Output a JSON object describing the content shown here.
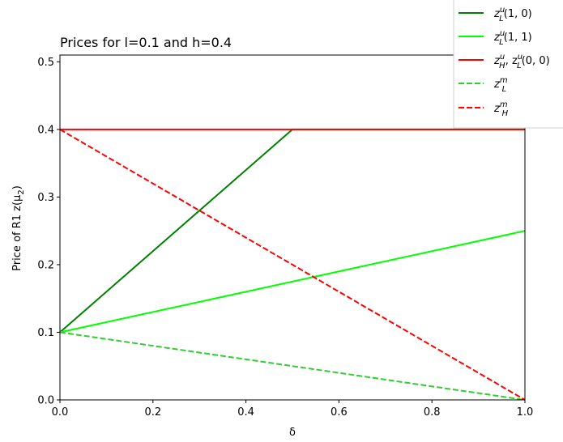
{
  "chart_data": {
    "type": "line",
    "title": "Prices for l=0.1 and h=0.4",
    "xlabel": "δ",
    "ylabel": "Price of R1 z(μ",
    "ylabel_sub": "2",
    "ylabel_close": ")",
    "xlim": [
      0.0,
      1.0
    ],
    "ylim": [
      0.0,
      0.51
    ],
    "x_ticks": [
      0.0,
      0.2,
      0.4,
      0.6,
      0.8,
      1.0
    ],
    "x_tick_labels": [
      "0.0",
      "0.2",
      "0.4",
      "0.6",
      "0.8",
      "1.0"
    ],
    "y_ticks": [
      0.0,
      0.1,
      0.2,
      0.3,
      0.4,
      0.5
    ],
    "y_tick_labels": [
      "0.0",
      "0.1",
      "0.2",
      "0.3",
      "0.4",
      "0.5"
    ],
    "grid": false,
    "legend_position": "top-right",
    "series": [
      {
        "name": "z_L^u(1,0)",
        "label_main": "z",
        "label_sub": "L",
        "label_sup": "u",
        "label_tail": "(1, 0)",
        "color": "#008000",
        "dash": "solid",
        "x": [
          0.0,
          0.5,
          1.0
        ],
        "y": [
          0.1,
          0.4,
          0.4
        ]
      },
      {
        "name": "z_L^u(1,1)",
        "label_main": "z",
        "label_sub": "L",
        "label_sup": "u",
        "label_tail": "(1, 1)",
        "color": "#00ff00",
        "dash": "solid",
        "x": [
          0.0,
          1.0
        ],
        "y": [
          0.1,
          0.25
        ]
      },
      {
        "name": "z_H^u, z_L^u(0,0)",
        "label_main": "z",
        "label_sub": "H",
        "label_sup": "u",
        "label_tail": ", z",
        "label_sub2": "L",
        "label_sup2": "u",
        "label_tail2": "(0, 0)",
        "color": "#ff0000",
        "dash": "solid",
        "x": [
          0.0,
          1.0
        ],
        "y": [
          0.4,
          0.4
        ]
      },
      {
        "name": "z_L^m",
        "label_main": "z",
        "label_sub": "L",
        "label_sup": "m",
        "label_tail": "",
        "color": "#32cd32",
        "dash": "dashed",
        "x": [
          0.0,
          1.0
        ],
        "y": [
          0.1,
          0.0
        ]
      },
      {
        "name": "z_H^m",
        "label_main": "z",
        "label_sub": "H",
        "label_sup": "m",
        "label_tail": "",
        "color": "#ff0000",
        "dash": "dashed",
        "x": [
          0.0,
          1.0
        ],
        "y": [
          0.4,
          0.0
        ]
      }
    ]
  }
}
